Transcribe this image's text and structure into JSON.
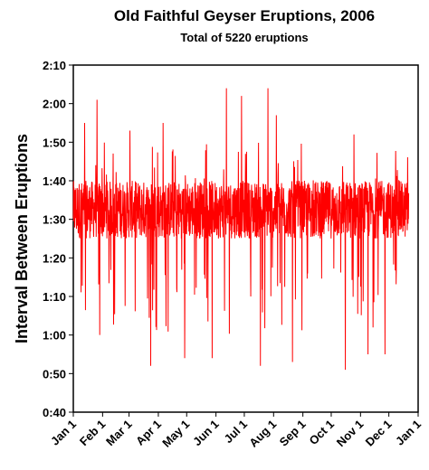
{
  "chart_data": {
    "type": "line",
    "title": "Old Faithful Geyser Eruptions, 2006",
    "subtitle": "Total of 5220 eruptions",
    "xlabel": "",
    "ylabel": "Interval Between Eruptions",
    "x_tick_labels": [
      "Jan 1",
      "Feb 1",
      "Mar 1",
      "Apr 1",
      "May 1",
      "Jun 1",
      "Jul 1",
      "Aug 1",
      "Sep 1",
      "Oct 1",
      "Nov 1",
      "Dec 1",
      "Jan 1"
    ],
    "y_tick_labels": [
      "0:40",
      "0:50",
      "1:00",
      "1:10",
      "1:20",
      "1:30",
      "1:40",
      "1:50",
      "2:00",
      "2:10"
    ],
    "ylim_minutes": [
      40,
      130
    ],
    "xlim_days": [
      0,
      365
    ],
    "data_range_days": [
      0,
      355
    ],
    "series": [
      {
        "color": "#ff0000",
        "typical_min_minutes": 85,
        "typical_max_minutes": 100,
        "center_minutes": 93,
        "spikes": [
          {
            "day": 12,
            "minutes": 115
          },
          {
            "day": 25,
            "minutes": 121
          },
          {
            "day": 28,
            "minutes": 60
          },
          {
            "day": 60,
            "minutes": 113
          },
          {
            "day": 82,
            "minutes": 52
          },
          {
            "day": 95,
            "minutes": 115
          },
          {
            "day": 118,
            "minutes": 54
          },
          {
            "day": 147,
            "minutes": 54
          },
          {
            "day": 162,
            "minutes": 124
          },
          {
            "day": 178,
            "minutes": 122
          },
          {
            "day": 198,
            "minutes": 52
          },
          {
            "day": 206,
            "minutes": 124
          },
          {
            "day": 215,
            "minutes": 117
          },
          {
            "day": 232,
            "minutes": 53
          },
          {
            "day": 288,
            "minutes": 51
          },
          {
            "day": 297,
            "minutes": 112
          },
          {
            "day": 312,
            "minutes": 55
          },
          {
            "day": 330,
            "minutes": 55
          }
        ]
      }
    ],
    "grid": false
  }
}
